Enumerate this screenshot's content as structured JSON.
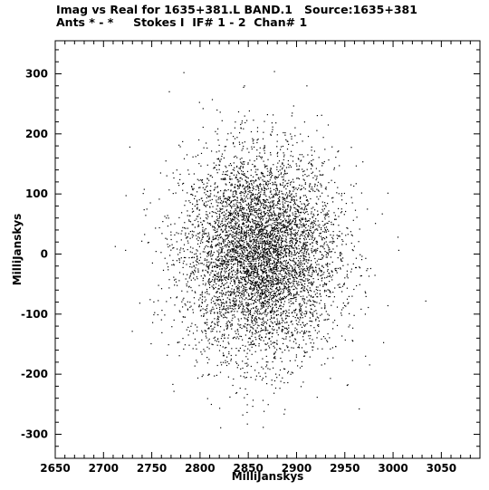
{
  "header": {
    "title_line1": "Imag vs Real for 1635+381.L BAND.1   Source:1635+381",
    "title_line2": "Ants * - *     Stokes I  IF# 1 - 2  Chan# 1"
  },
  "chart_data": {
    "type": "scatter",
    "title": "Imag vs Real for 1635+381.L BAND.1   Source:1635+381",
    "subtitle": "Ants * - *     Stokes I  IF# 1 - 2  Chan# 1",
    "xlabel": "MilliJanskys",
    "ylabel": "MilliJanskys",
    "xlim": [
      2650,
      3090
    ],
    "ylim": [
      -340,
      355
    ],
    "x_ticks": [
      2650,
      2700,
      2750,
      2800,
      2850,
      2900,
      2950,
      3000,
      3050
    ],
    "y_ticks": [
      -300,
      -200,
      -100,
      0,
      100,
      200,
      300
    ],
    "x_tick_labels": [
      "2650",
      "2700",
      "2750",
      "2800",
      "2850",
      "2900",
      "2950",
      "3000",
      "3050"
    ],
    "y_tick_labels": [
      "-300",
      "-200",
      "-100",
      "0",
      "100",
      "200",
      "300"
    ],
    "x_minor_step": 10,
    "y_minor_step": 20,
    "point_cloud": {
      "n_points": 6000,
      "center_x": 2862,
      "center_y": 0,
      "std_x": 40,
      "std_y": 85,
      "marker_color": "#000000"
    },
    "grid": false,
    "legend": "none"
  }
}
